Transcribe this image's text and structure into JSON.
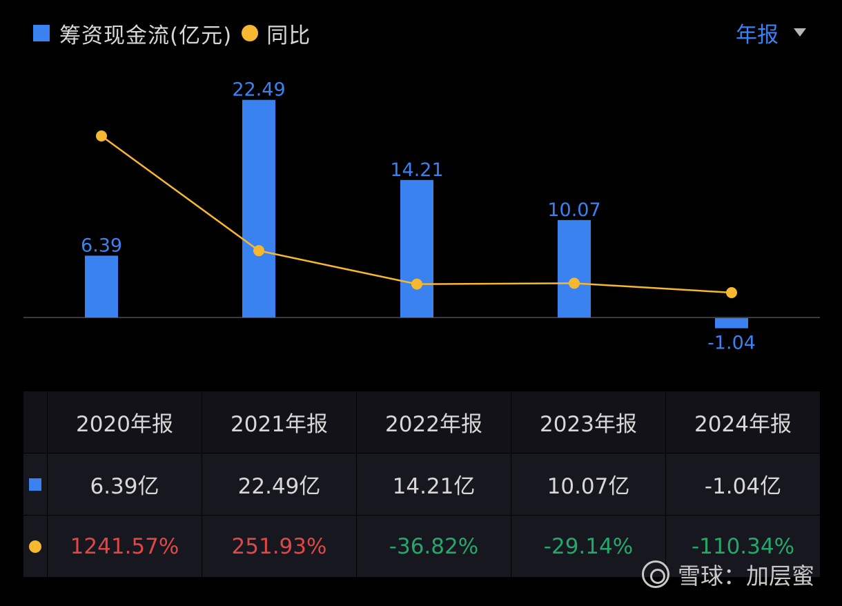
{
  "legend": {
    "bar_label": "筹资现金流(亿元)",
    "line_label": "同比"
  },
  "period_select": {
    "label": "年报"
  },
  "chart_data": {
    "type": "bar",
    "categories": [
      "2020年报",
      "2021年报",
      "2022年报",
      "2023年报",
      "2024年报"
    ],
    "series": [
      {
        "name": "筹资现金流(亿元)",
        "type": "bar",
        "values": [
          6.39,
          22.49,
          14.21,
          10.07,
          -1.04
        ],
        "data_labels": [
          "6.39",
          "22.49",
          "14.21",
          "10.07",
          "-1.04"
        ],
        "color": "#3a82f0"
      },
      {
        "name": "同比",
        "type": "line",
        "values": [
          1241.57,
          251.93,
          -36.82,
          -29.14,
          -110.34
        ],
        "unit": "%",
        "color": "#f7b731"
      }
    ],
    "grid": false,
    "legend_position": "top-left"
  },
  "table": {
    "headers": [
      "2020年报",
      "2021年报",
      "2022年报",
      "2023年报",
      "2024年报"
    ],
    "bar_row": [
      "6.39亿",
      "22.49亿",
      "14.21亿",
      "10.07亿",
      "-1.04亿"
    ],
    "line_row": [
      "1241.57%",
      "251.93%",
      "-36.82%",
      "-29.14%",
      "-110.34%"
    ]
  },
  "watermark": {
    "text": "雪球：加层蜜"
  },
  "colors": {
    "bar": "#3a82f0",
    "line": "#f7b731",
    "positive": "#e04848",
    "negative": "#24a86a",
    "background": "#000000"
  }
}
